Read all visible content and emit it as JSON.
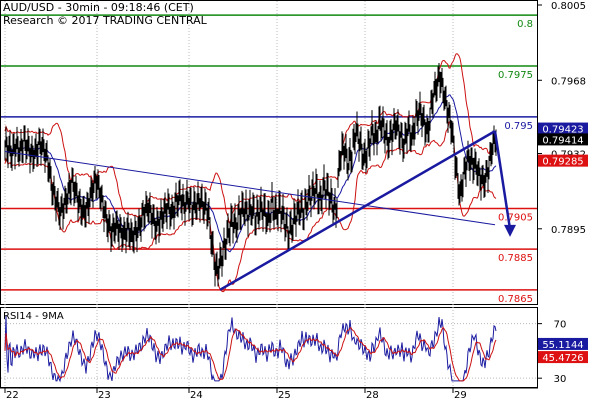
{
  "header": {
    "title": "AUD/USD - 30min - 09:18:46 (CET)",
    "subtitle": "Research © 2017 TRADING CENTRAL"
  },
  "chart_data": [
    {
      "type": "line",
      "panel": "price",
      "ylim": [
        0.786,
        0.8005
      ],
      "y_ticks": [
        "0.8005",
        "0.7968",
        "0.7932",
        "0.7895"
      ],
      "x_ticks": [
        "22",
        "23",
        "24",
        "25",
        "28",
        "29"
      ],
      "horizontal_levels": [
        {
          "value": 0.8,
          "label": "0.8",
          "color": "#118811"
        },
        {
          "value": 0.7975,
          "label": "0.7975",
          "color": "#118811"
        },
        {
          "value": 0.795,
          "label": "0.795",
          "color": "#1a1aa0"
        },
        {
          "value": 0.7905,
          "label": "0.7905",
          "color": "#dd1111"
        },
        {
          "value": 0.7885,
          "label": "0.7885",
          "color": "#dd1111"
        },
        {
          "value": 0.7865,
          "label": "0.7865",
          "color": "#dd1111"
        }
      ],
      "price_boxes": [
        {
          "label": "0.79423",
          "bg": "#1a1aa0",
          "fg": "#ffffff"
        },
        {
          "label": "0.79414",
          "bg": "#000000",
          "fg": "#ffffff"
        },
        {
          "label": "0.79285",
          "bg": "#dd1111",
          "fg": "#ffffff"
        }
      ],
      "series": [
        {
          "kind": "close",
          "x": [
            0,
            4,
            8,
            12,
            16,
            20,
            24,
            28,
            32,
            36,
            40,
            44,
            48,
            52,
            56,
            60,
            64,
            68,
            72,
            76,
            80,
            84,
            88,
            92,
            96,
            100,
            104,
            108,
            112,
            116,
            120,
            124,
            128,
            132,
            136,
            140,
            144,
            148,
            152,
            156,
            160,
            164,
            168,
            172,
            176,
            180,
            184,
            188,
            192,
            196,
            200,
            204,
            208,
            212,
            216,
            220,
            224,
            228,
            232,
            236,
            240,
            244,
            248,
            252,
            256,
            260,
            264,
            268,
            272,
            276,
            280,
            284,
            288,
            292,
            296,
            300,
            304,
            308,
            312,
            316,
            320,
            324,
            328,
            332,
            336,
            340,
            344,
            348,
            352,
            356,
            360,
            364,
            368,
            372,
            376,
            380,
            384,
            388,
            392,
            396,
            400,
            404,
            408,
            412,
            416,
            420,
            424,
            428,
            432,
            436,
            440,
            444,
            448,
            452,
            456,
            460,
            464,
            468,
            472,
            476,
            480,
            484,
            488
          ],
          "y": [
            0.7935,
            0.7932,
            0.7936,
            0.7933,
            0.7938,
            0.7935,
            0.7931,
            0.7933,
            0.7937,
            0.7934,
            0.7928,
            0.7915,
            0.7909,
            0.7903,
            0.7906,
            0.7912,
            0.7918,
            0.7913,
            0.7906,
            0.7903,
            0.7906,
            0.7914,
            0.7919,
            0.7913,
            0.7904,
            0.7897,
            0.7893,
            0.7897,
            0.7894,
            0.7892,
            0.7895,
            0.7891,
            0.7893,
            0.7897,
            0.7903,
            0.7906,
            0.7901,
            0.7896,
            0.7899,
            0.7903,
            0.7906,
            0.7902,
            0.7908,
            0.7911,
            0.7906,
            0.791,
            0.7905,
            0.7907,
            0.7909,
            0.7906,
            0.7904,
            0.7887,
            0.7874,
            0.7878,
            0.7885,
            0.7893,
            0.7899,
            0.7896,
            0.7903,
            0.7905,
            0.7902,
            0.7905,
            0.79,
            0.7905,
            0.7904,
            0.7899,
            0.7907,
            0.7902,
            0.7905,
            0.79,
            0.7893,
            0.7896,
            0.7902,
            0.7905,
            0.7903,
            0.791,
            0.7912,
            0.7915,
            0.7908,
            0.7916,
            0.7913,
            0.7908,
            0.7903,
            0.7931,
            0.7935,
            0.7927,
            0.7932,
            0.7944,
            0.7937,
            0.7929,
            0.7934,
            0.7943,
            0.7939,
            0.7948,
            0.7944,
            0.7937,
            0.7942,
            0.7947,
            0.7941,
            0.7936,
            0.7945,
            0.7939,
            0.795,
            0.7953,
            0.7947,
            0.7942,
            0.7958,
            0.7965,
            0.797,
            0.7961,
            0.7952,
            0.7944,
            0.7925,
            0.7911,
            0.7922,
            0.793,
            0.7927,
            0.7926,
            0.792,
            0.7918,
            0.7923,
            0.7935,
            0.7941
          ]
        },
        {
          "kind": "regression-line",
          "x": [
            0,
            490
          ],
          "y": [
            0.7933,
            0.7897
          ]
        },
        {
          "kind": "trendline",
          "x": [
            215,
            490
          ],
          "y": [
            0.7865,
            0.7943
          ]
        },
        {
          "kind": "projection-arrow",
          "x": [
            490,
            505
          ],
          "y": [
            0.7943,
            0.7892
          ]
        }
      ]
    },
    {
      "type": "line",
      "panel": "indicator",
      "title": "RSI14 - 9MA",
      "ylim": [
        25,
        80
      ],
      "y_ticks": [
        "70",
        "30"
      ],
      "value_boxes": [
        {
          "label": "55.1144",
          "bg": "#1a1aa0",
          "fg": "#ffffff"
        },
        {
          "label": "45.4726",
          "bg": "#dd1111",
          "fg": "#ffffff"
        }
      ],
      "series": [
        {
          "kind": "rsi"
        },
        {
          "kind": "ma"
        }
      ]
    }
  ]
}
